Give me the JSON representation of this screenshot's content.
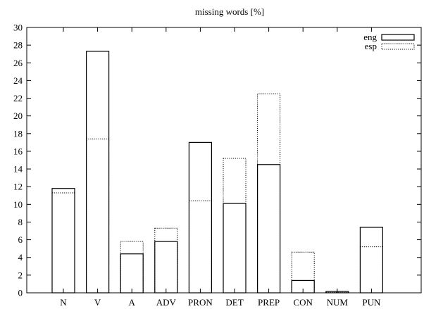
{
  "chart_data": {
    "type": "bar",
    "title": "missing words [%]",
    "xlabel": "",
    "ylabel": "",
    "ylim": [
      0,
      30
    ],
    "yticks": [
      0,
      2,
      4,
      6,
      8,
      10,
      12,
      14,
      16,
      18,
      20,
      22,
      24,
      26,
      28,
      30
    ],
    "categories": [
      "N",
      "V",
      "A",
      "ADV",
      "PRON",
      "DET",
      "PREP",
      "CON",
      "NUM",
      "PUN"
    ],
    "series": [
      {
        "name": "eng",
        "style": "solid",
        "color": "#000000",
        "values": [
          11.8,
          27.3,
          4.4,
          5.8,
          17.0,
          10.1,
          14.5,
          1.4,
          0.15,
          7.4
        ]
      },
      {
        "name": "esp",
        "style": "dotted",
        "color": "#000000",
        "values": [
          11.3,
          17.4,
          5.8,
          7.3,
          10.4,
          15.2,
          22.5,
          4.6,
          0.05,
          5.2
        ]
      }
    ],
    "legend_position": "top-right",
    "grid": false
  }
}
